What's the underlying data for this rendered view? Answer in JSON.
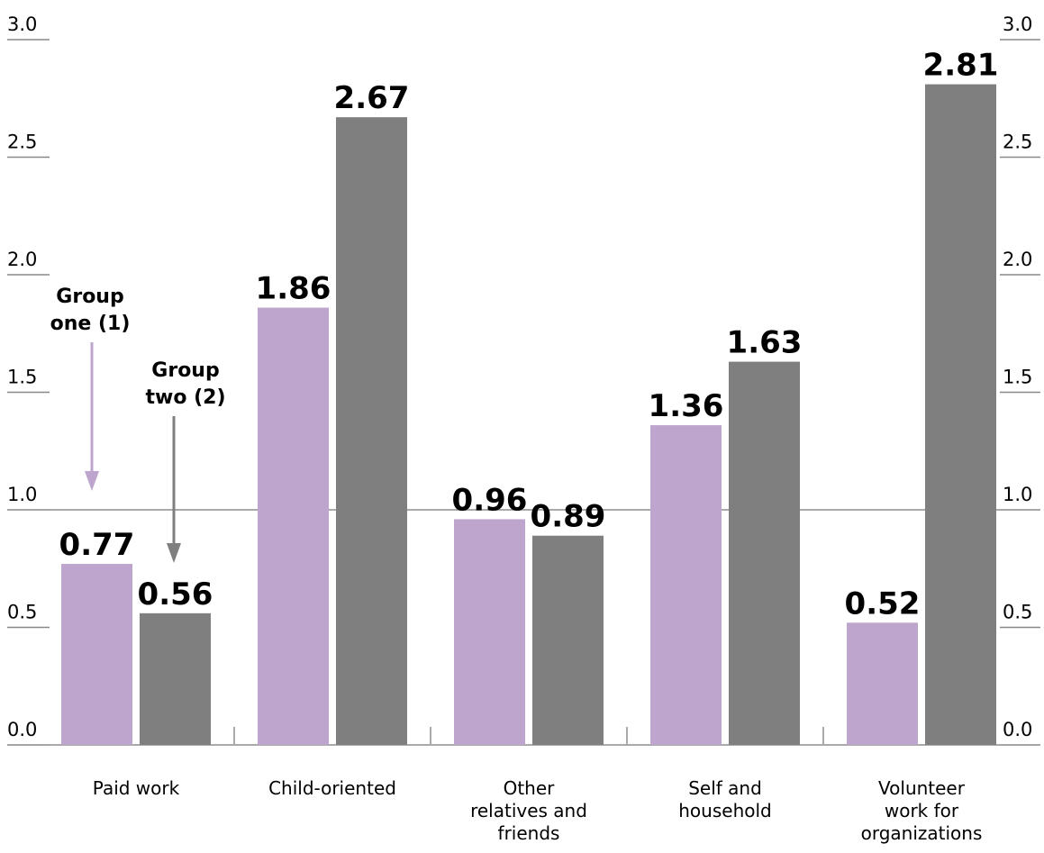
{
  "chart_data": {
    "type": "bar",
    "categories": [
      "Paid work",
      "Child-oriented",
      "Other\nrelatives and\nfriends",
      "Self and\nhousehold",
      "Volunteer\nwork for\norganizations"
    ],
    "series": [
      {
        "name": "Group\none (1)",
        "color": "#bea5cd",
        "values": [
          0.77,
          1.86,
          0.96,
          1.36,
          0.52
        ]
      },
      {
        "name": "Group\ntwo (2)",
        "color": "#7f7f7f",
        "values": [
          0.56,
          2.67,
          0.89,
          1.63,
          2.81
        ]
      }
    ],
    "ylim": [
      0,
      3
    ],
    "yticks": [
      {
        "value": 0,
        "label": "0.0"
      },
      0.5,
      {
        "value": 1,
        "label": "1.0"
      },
      1.5,
      {
        "value": 2,
        "label": "2.0"
      },
      2.5,
      {
        "value": 3,
        "label": "3.0"
      }
    ],
    "reference_line": 1
  }
}
